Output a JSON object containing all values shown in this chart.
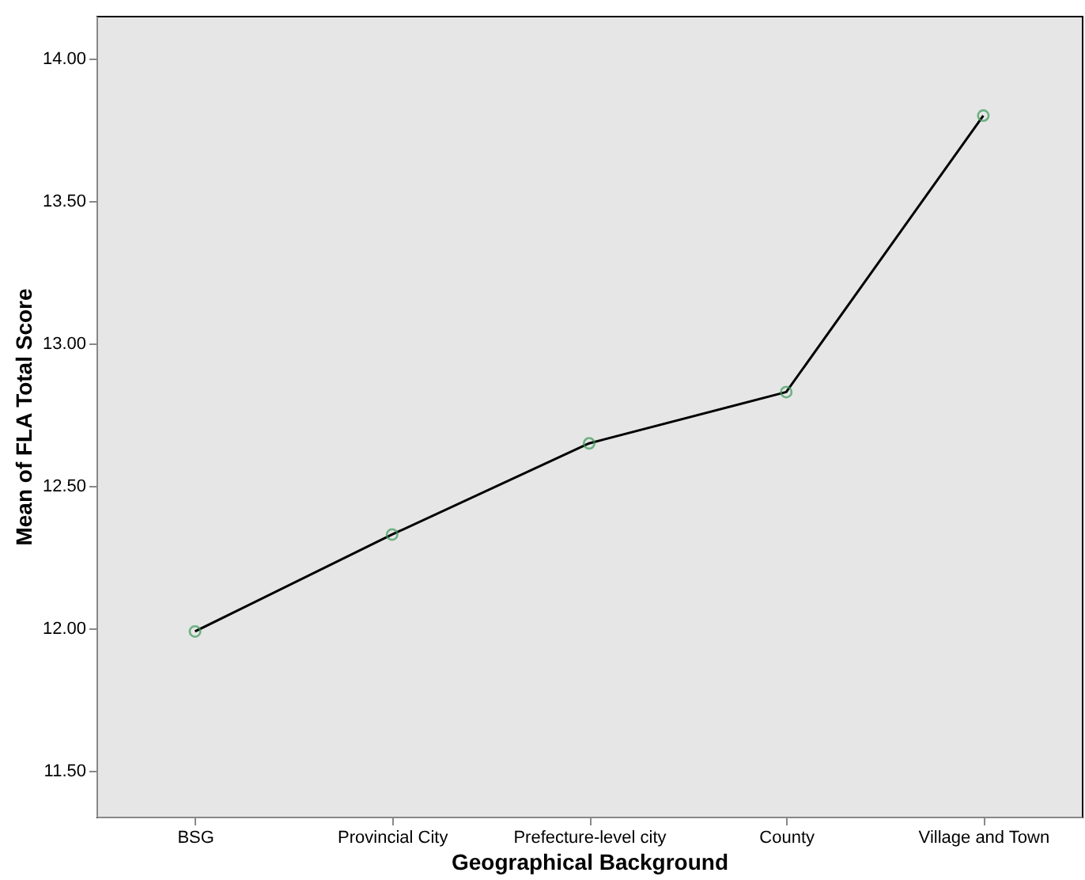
{
  "chart_data": {
    "type": "line",
    "xlabel": "Geographical Background",
    "ylabel": "Mean of FLA Total Score",
    "categories": [
      "BSG",
      "Provincial City",
      "Prefecture-level city",
      "County",
      "Village and Town"
    ],
    "series": [
      {
        "color": "#000000",
        "values": [
          11.99,
          12.33,
          12.65,
          12.83,
          13.8
        ]
      }
    ],
    "marker": "circle",
    "line_style": "solid",
    "grid": false,
    "legend": false,
    "ylim": [
      11.34,
      14.15
    ],
    "yticks": [
      {
        "value": 11.5,
        "label": "11.50"
      },
      {
        "value": 12,
        "label": "12.00"
      },
      {
        "value": 12.5,
        "label": "12.50"
      },
      {
        "value": 13,
        "label": "13.00"
      },
      {
        "value": 13.5,
        "label": "13.50"
      },
      {
        "value": 14,
        "label": "14.00"
      }
    ]
  }
}
